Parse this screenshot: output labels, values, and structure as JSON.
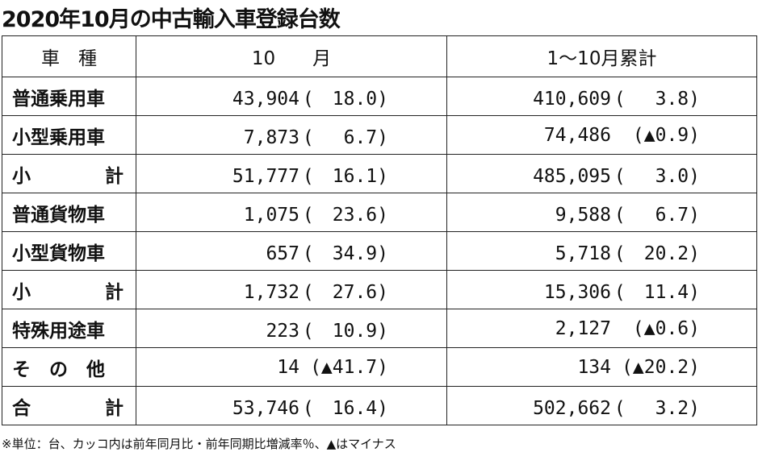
{
  "title": "2020年10月の中古輸入車登録台数",
  "table": {
    "header": [
      "車　種",
      "10　　月",
      "1〜10月累計"
    ],
    "rows": [
      [
        "普通乗用車",
        "43,904",
        "(　18.0)",
        "410,609",
        "(　 3.8)"
      ],
      [
        "小型乗用車",
        "7,873",
        "(　 6.7)",
        "74,486",
        "(▲0.9)"
      ],
      [
        "小　　　　計",
        "51,777",
        "(　16.1)",
        "485,095",
        "(　 3.0)"
      ],
      [
        "普通貨物車",
        "1,075",
        "(　23.6)",
        "9,588",
        "(　 6.7)"
      ],
      [
        "小型貨物車",
        "657",
        "(　34.9)",
        "5,718",
        "(　20.2)"
      ],
      [
        "小　　　　計",
        "1,732",
        "(　27.6)",
        "15,306",
        "(　11.4)"
      ],
      [
        "特殊用途車",
        "223",
        "(　10.9)",
        "2,127",
        "(▲0.6)"
      ],
      [
        "そ　の　他",
        "14",
        "(▲41.7)",
        "134",
        "(▲20.2)"
      ],
      [
        "合　　　　計",
        "53,746",
        "(　16.4)",
        "502,662",
        "(　 3.2)"
      ]
    ]
  },
  "footnote": "※単位：台、カッコ内は前年同月比・前年同期比増減率％、▲はマイナス"
}
